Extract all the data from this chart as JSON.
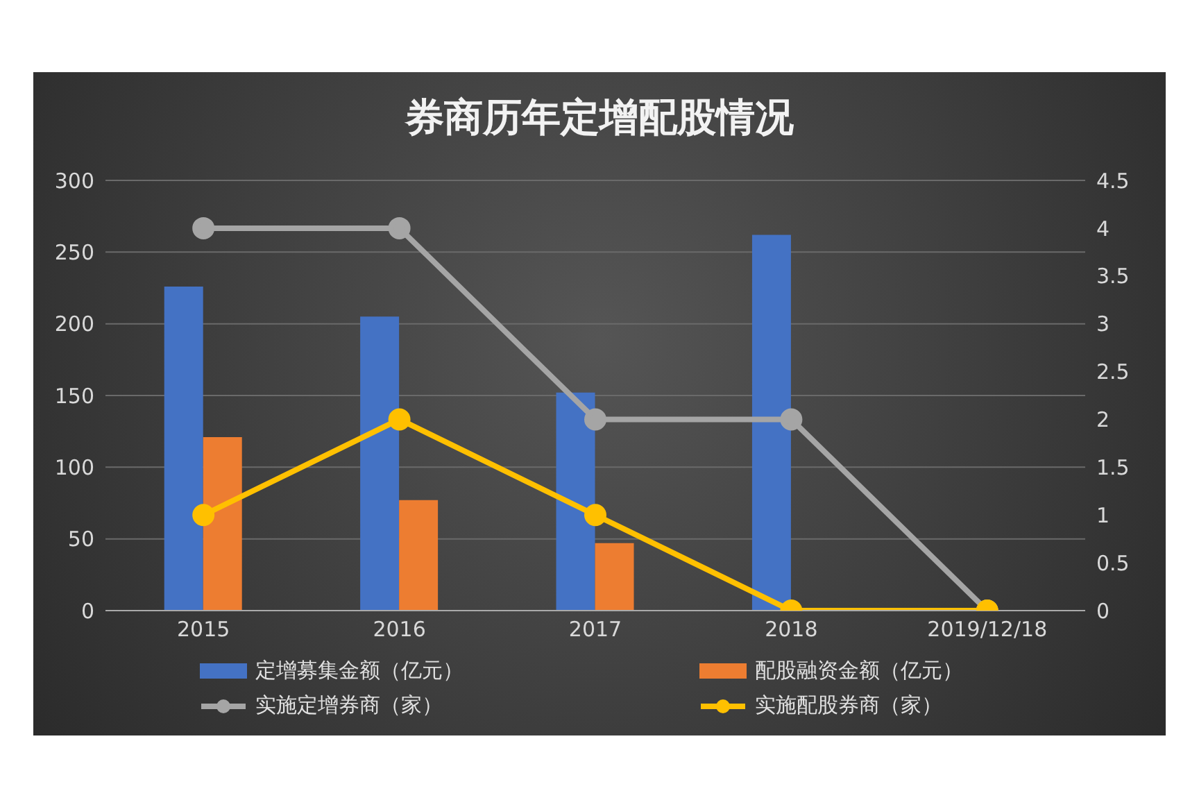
{
  "chart_data": {
    "type": "bar",
    "title": "券商历年定增配股情况",
    "categories": [
      "2015",
      "2016",
      "2017",
      "2018",
      "2019/12/18"
    ],
    "series": [
      {
        "name": "定增募集金额（亿元）",
        "color": "#4472c4",
        "values": [
          226,
          205,
          152,
          262,
          null
        ]
      },
      {
        "name": "配股融资金额（亿元）",
        "color": "#ed7d31",
        "values": [
          121,
          77,
          47,
          null,
          null
        ]
      },
      {
        "name": "实施定增券商（家）",
        "type": "line",
        "axis": "y2",
        "color": "#a5a5a5",
        "values": [
          4,
          4,
          2,
          2,
          0
        ]
      },
      {
        "name": "实施配股券商（家）",
        "type": "line",
        "axis": "y2",
        "color": "#ffc000",
        "values": [
          1,
          2,
          1,
          0,
          0
        ]
      }
    ],
    "ylim": [
      0,
      300
    ],
    "yticks": [
      0,
      50,
      100,
      150,
      200,
      250,
      300
    ],
    "y2lim": [
      0,
      4.5
    ],
    "y2ticks": [
      0,
      0.5,
      1,
      1.5,
      2,
      2.5,
      3,
      3.5,
      4,
      4.5
    ],
    "grid": "y",
    "legend": "bottom",
    "marker": "circle"
  }
}
